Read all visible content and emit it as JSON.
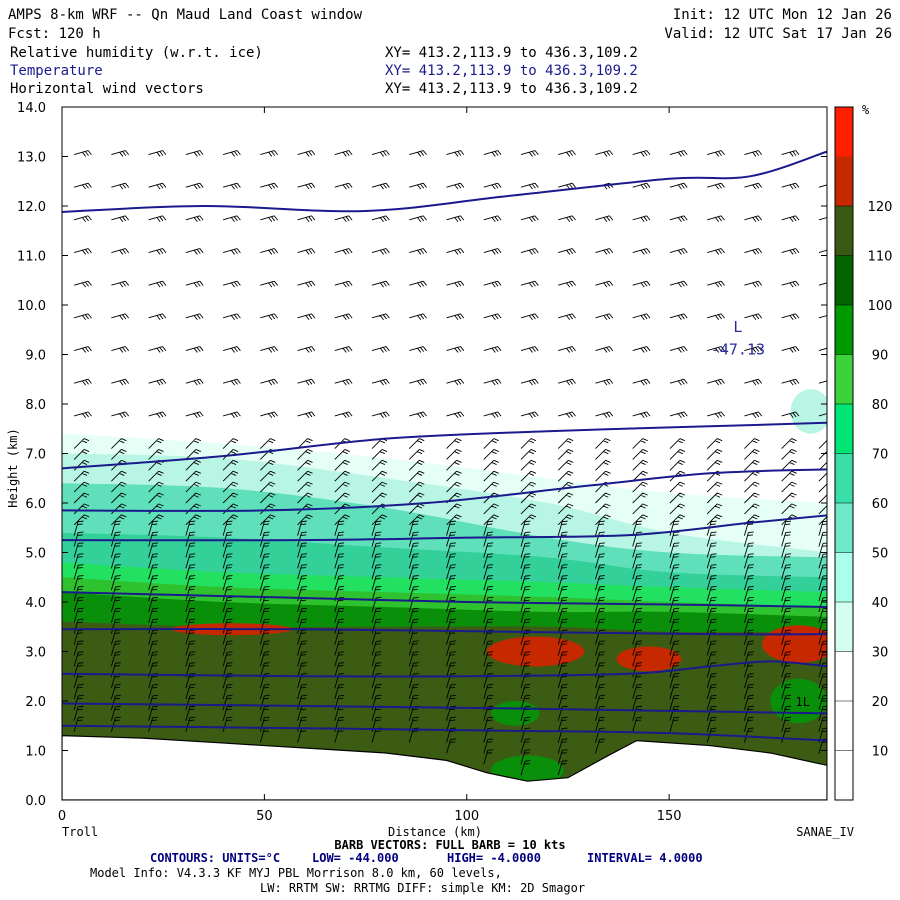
{
  "header": {
    "title": "AMPS 8-km WRF -- Qn Maud Land Coast window",
    "forecast": "Fcst:  120 h",
    "init": "Init: 12 UTC Mon 12 Jan 26",
    "valid": "Valid: 12 UTC Sat 17 Jan 26",
    "fields": [
      {
        "name": "Relative humidity (w.r.t. ice)",
        "xy": "XY= 413.2,113.9 to 436.3,109.2",
        "color": "#000000"
      },
      {
        "name": "Temperature",
        "xy": "XY= 413.2,113.9 to 436.3,109.2",
        "color": "#1a1a8c"
      },
      {
        "name": "Horizontal wind vectors",
        "xy": "XY= 413.2,113.9 to 436.3,109.2",
        "color": "#000000"
      }
    ]
  },
  "chart_data": {
    "type": "heatmap",
    "xlabel": "Distance (km)",
    "ylabel": "Height (km)",
    "xlim": [
      0,
      189
    ],
    "ylim": [
      0,
      14
    ],
    "x_ticks": [
      "0",
      "50",
      "100",
      "150"
    ],
    "x_tick_values": [
      0,
      50,
      100,
      150
    ],
    "y_ticks": [
      "0.0",
      "1.0",
      "2.0",
      "3.0",
      "4.0",
      "5.0",
      "6.0",
      "7.0",
      "8.0",
      "9.0",
      "10.0",
      "11.0",
      "12.0",
      "13.0",
      "14.0"
    ],
    "y_tick_values": [
      0,
      1,
      2,
      3,
      4,
      5,
      6,
      7,
      8,
      9,
      10,
      11,
      12,
      13,
      14
    ],
    "left_label": "Troll",
    "right_label": "SANAE_IV",
    "colorbar": {
      "unit": "%",
      "labels": [
        "10",
        "20",
        "30",
        "40",
        "50",
        "60",
        "70",
        "80",
        "90",
        "100",
        "110",
        "120"
      ],
      "colors": [
        "#ffffff",
        "#ffffff",
        "#ffffff",
        "#d4fff0",
        "#aaffea",
        "#6ee8c8",
        "#39dea8",
        "#00e676",
        "#3cd23c",
        "#009a00",
        "#006400",
        "#3a5a14",
        "#c62800",
        "#ff1e00"
      ]
    },
    "terrain_km": [
      [
        0,
        1.3
      ],
      [
        20,
        1.25
      ],
      [
        40,
        1.15
      ],
      [
        60,
        1.05
      ],
      [
        80,
        0.95
      ],
      [
        95,
        0.8
      ],
      [
        105,
        0.55
      ],
      [
        115,
        0.38
      ],
      [
        125,
        0.45
      ],
      [
        135,
        0.9
      ],
      [
        142,
        1.2
      ],
      [
        160,
        1.1
      ],
      [
        175,
        0.95
      ],
      [
        189,
        0.7
      ]
    ],
    "rh_layers": [
      {
        "rh": 30,
        "color": "#e6fff6",
        "top": [
          [
            0,
            7.4
          ],
          [
            40,
            7.2
          ],
          [
            80,
            6.9
          ],
          [
            120,
            6.5
          ],
          [
            150,
            6.2
          ],
          [
            189,
            6.0
          ]
        ]
      },
      {
        "rh": 40,
        "color": "#b9f5e4",
        "top": [
          [
            0,
            7.0
          ],
          [
            40,
            6.9
          ],
          [
            80,
            6.5
          ],
          [
            120,
            6.0
          ],
          [
            150,
            5.4
          ],
          [
            189,
            5.0
          ]
        ]
      },
      {
        "rh": 50,
        "color": "#5fe0bb",
        "top": [
          [
            0,
            6.4
          ],
          [
            40,
            6.3
          ],
          [
            80,
            5.9
          ],
          [
            120,
            5.3
          ],
          [
            150,
            5.0
          ],
          [
            189,
            4.9
          ]
        ]
      },
      {
        "rh": 60,
        "color": "#34d09a",
        "top": [
          [
            0,
            5.4
          ],
          [
            40,
            5.3
          ],
          [
            80,
            5.1
          ],
          [
            120,
            4.9
          ],
          [
            150,
            4.6
          ],
          [
            189,
            4.5
          ]
        ]
      },
      {
        "rh": 70,
        "color": "#22e060",
        "top": [
          [
            0,
            4.8
          ],
          [
            40,
            4.6
          ],
          [
            80,
            4.5
          ],
          [
            120,
            4.4
          ],
          [
            150,
            4.3
          ],
          [
            189,
            4.2
          ]
        ]
      },
      {
        "rh": 80,
        "color": "#2fc22f",
        "top": [
          [
            0,
            4.5
          ],
          [
            40,
            4.3
          ],
          [
            80,
            4.2
          ],
          [
            120,
            4.1
          ],
          [
            150,
            4.0
          ],
          [
            189,
            3.9
          ]
        ]
      },
      {
        "rh": 90,
        "color": "#0a8f0a",
        "top": [
          [
            0,
            4.2
          ],
          [
            40,
            4.0
          ],
          [
            80,
            3.9
          ],
          [
            120,
            3.8
          ],
          [
            150,
            3.8
          ],
          [
            189,
            3.7
          ]
        ]
      },
      {
        "rh": 100,
        "color": "#3c5c14",
        "top": [
          [
            0,
            3.6
          ],
          [
            40,
            3.5
          ],
          [
            80,
            3.5
          ],
          [
            120,
            3.5
          ],
          [
            150,
            3.4
          ],
          [
            189,
            3.4
          ]
        ]
      }
    ],
    "rh_patches": [
      {
        "rh": 110,
        "color": "#c62800",
        "cx": 42,
        "cy": 3.45,
        "rx": 15,
        "ry": 0.12
      },
      {
        "rh": 110,
        "color": "#c62800",
        "cx": 117,
        "cy": 3.0,
        "rx": 12,
        "ry": 0.3
      },
      {
        "rh": 110,
        "color": "#c62800",
        "cx": 145,
        "cy": 2.85,
        "rx": 8,
        "ry": 0.25
      },
      {
        "rh": 110,
        "color": "#c62800",
        "cx": 182,
        "cy": 3.15,
        "rx": 9,
        "ry": 0.38
      },
      {
        "rh": 90,
        "color": "#0a8f0a",
        "cx": 112,
        "cy": 1.75,
        "rx": 6,
        "ry": 0.25
      },
      {
        "rh": 90,
        "color": "#0a8f0a",
        "cx": 115,
        "cy": 0.6,
        "rx": 9,
        "ry": 0.3
      },
      {
        "rh": 90,
        "color": "#0a8f0a",
        "cx": 182,
        "cy": 2.0,
        "rx": 7,
        "ry": 0.45
      },
      {
        "rh": 40,
        "color": "#b9f5e4",
        "cx": 185,
        "cy": 7.85,
        "rx": 5,
        "ry": 0.45
      }
    ],
    "temperature_contours": [
      [
        [
          0,
          11.88
        ],
        [
          35,
          12.0
        ],
        [
          75,
          11.9
        ],
        [
          110,
          12.2
        ],
        [
          150,
          12.55
        ],
        [
          170,
          12.6
        ],
        [
          189,
          13.1
        ]
      ],
      [
        [
          0,
          6.7
        ],
        [
          40,
          6.95
        ],
        [
          80,
          7.3
        ],
        [
          120,
          7.45
        ],
        [
          160,
          7.55
        ],
        [
          189,
          7.62
        ]
      ],
      [
        [
          0,
          5.85
        ],
        [
          50,
          5.85
        ],
        [
          90,
          6.0
        ],
        [
          130,
          6.35
        ],
        [
          160,
          6.6
        ],
        [
          189,
          6.68
        ]
      ],
      [
        [
          0,
          5.25
        ],
        [
          60,
          5.25
        ],
        [
          100,
          5.3
        ],
        [
          140,
          5.35
        ],
        [
          170,
          5.6
        ],
        [
          189,
          5.75
        ]
      ],
      [
        [
          0,
          4.2
        ],
        [
          50,
          4.1
        ],
        [
          100,
          4.0
        ],
        [
          150,
          3.95
        ],
        [
          189,
          3.9
        ]
      ],
      [
        [
          0,
          3.45
        ],
        [
          60,
          3.45
        ],
        [
          110,
          3.4
        ],
        [
          160,
          3.35
        ],
        [
          189,
          3.35
        ]
      ],
      [
        [
          0,
          2.55
        ],
        [
          60,
          2.5
        ],
        [
          100,
          2.5
        ],
        [
          140,
          2.55
        ],
        [
          160,
          2.7
        ],
        [
          175,
          2.8
        ],
        [
          189,
          2.7
        ]
      ],
      [
        [
          0,
          1.95
        ],
        [
          60,
          1.9
        ],
        [
          110,
          1.85
        ],
        [
          150,
          1.8
        ],
        [
          189,
          1.75
        ]
      ],
      [
        [
          0,
          1.5
        ],
        [
          60,
          1.45
        ],
        [
          110,
          1.4
        ],
        [
          150,
          1.35
        ],
        [
          189,
          1.2
        ]
      ]
    ],
    "annotations": [
      {
        "text": "L",
        "x": 167,
        "y": 9.45,
        "color": "#2a2a9c"
      },
      {
        "text": "-47.13",
        "x": 167,
        "y": 9.0,
        "color": "#2a2a9c"
      }
    ],
    "low_marker": {
      "text": "1L",
      "x": 183,
      "y": 1.9,
      "color": "#000000"
    }
  },
  "footer": {
    "barb_note": "BARB VECTORS:  FULL BARB = 10 kts",
    "contours_label": "CONTOURS:  UNITS=°C",
    "low": "LOW= -44.000",
    "high": "HIGH= -4.0000",
    "interval": "INTERVAL=   4.0000",
    "model_info": "Model Info: V4.3.3   KF      MYJ PBL  Morrison          8.0 km,  60 levels,",
    "physics": "LW: RRTM SW: RRTMG   DIFF: simple KM: 2D Smagor"
  }
}
